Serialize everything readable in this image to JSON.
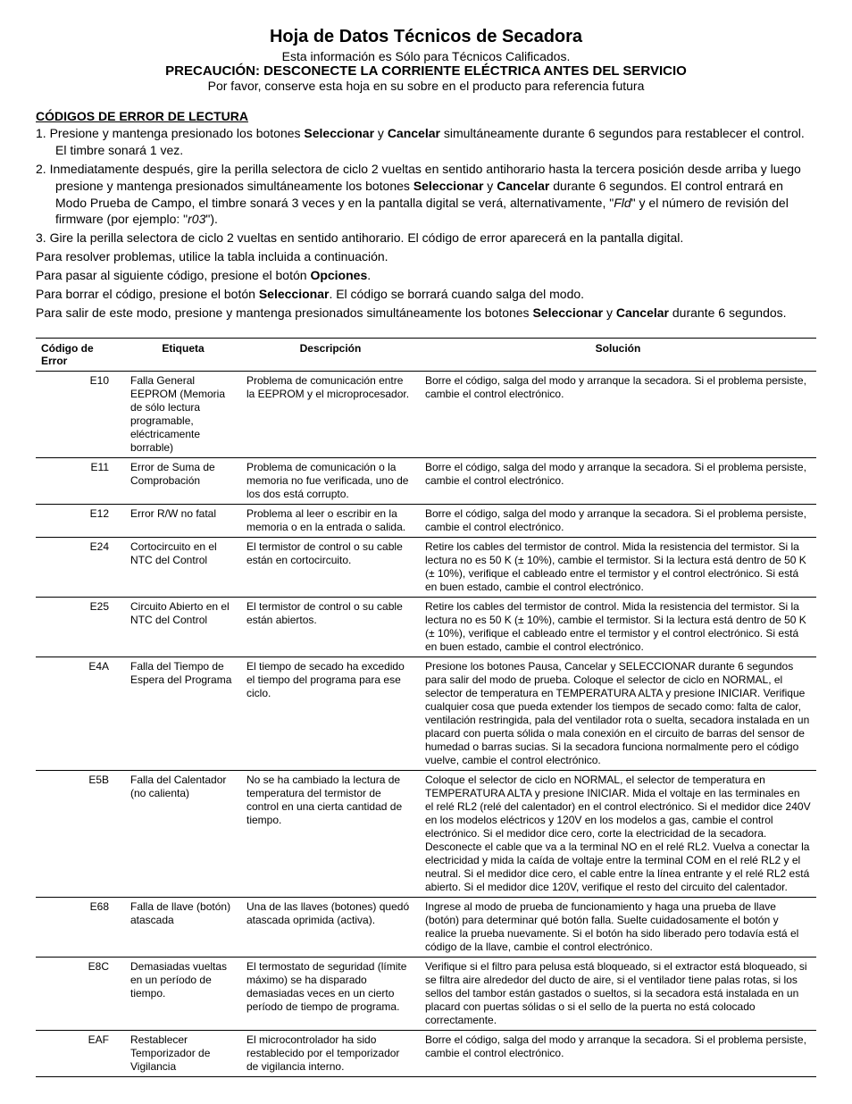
{
  "title": "Hoja de Datos Técnicos de Secadora",
  "subtitle1": "Esta información es Sólo para Técnicos Calificados.",
  "subtitle2": "PRECAUCIÓN: DESCONECTE LA CORRIENTE ELÉCTRICA ANTES DEL SERVICIO",
  "subtitle3": "Por favor, conserve esta hoja en su sobre en el producto para referencia futura",
  "section_header": "CÓDIGOS DE ERROR DE LECTURA",
  "step1_a": "1.  Presione y mantenga presionado los botones ",
  "step1_sel": "Seleccionar",
  "step1_b": " y ",
  "step1_can": "Cancelar",
  "step1_c": " simultáneamente durante 6 segundos para restablecer el control. El timbre sonará 1 vez.",
  "step2_a": "2.  Inmediatamente después, gire la perilla selectora de ciclo 2 vueltas en sentido antihorario hasta la tercera posición desde arriba y luego presione y mantenga presionados simultáneamente los botones ",
  "step2_sel": "Seleccionar",
  "step2_b": " y ",
  "step2_can": "Cancelar",
  "step2_c": " durante 6 segundos. El control entrará en Modo Prueba de Campo, el timbre sonará 3 veces y en la pantalla digital se verá, alternativamente, \"",
  "step2_fld": "Fld",
  "step2_d": "\" y el número de revisión del firmware (por ejemplo: \"",
  "step2_r03": "r03",
  "step2_e": "\").",
  "step3": "3.  Gire la perilla selectora de ciclo 2 vueltas en sentido antihorario. El código de error aparecerá en la pantalla digital.",
  "pres": "Para resolver problemas, utilice la tabla incluida a continuación.",
  "pnext_a": "Para pasar al siguiente código, presione el botón ",
  "pnext_b": "Opciones",
  "pnext_c": ".",
  "pclear_a": "Para borrar el código, presione el botón ",
  "pclear_b": "Seleccionar",
  "pclear_c": ". El código se borrará cuando salga del modo.",
  "pexit_a": "Para salir de este modo, presione y mantenga presionados simultáneamente los botones ",
  "pexit_sel": "Seleccionar",
  "pexit_b": " y ",
  "pexit_can": "Cancelar",
  "pexit_c": " durante 6 segundos.",
  "th1": "Código de Error",
  "th2": "Etiqueta",
  "th3": "Descripción",
  "th4": "Solución",
  "rows": [
    {
      "code": "E10",
      "label": "Falla General EEPROM (Memoria de sólo lectura programable, eléctricamente borrable)",
      "desc": "Problema de comunicación entre la EEPROM y el microprocesador.",
      "sol": "Borre el código, salga del modo y arranque la secadora. Si el problema persiste, cambie el control electrónico."
    },
    {
      "code": "E11",
      "label": "Error de Suma de Comprobación",
      "desc": "Problema de comunicación o la memoria no fue verificada, uno de los dos está corrupto.",
      "sol": "Borre el código, salga del modo y arranque la secadora. Si el problema persiste, cambie el control electrónico."
    },
    {
      "code": "E12",
      "label": "Error R/W no fatal",
      "desc": "Problema al leer o escribir en la memoria o en la entrada o salida.",
      "sol": "Borre el código, salga del modo y arranque la secadora. Si el problema persiste, cambie el control electrónico."
    },
    {
      "code": "E24",
      "label": "Cortocircuito en el NTC del Control",
      "desc": "El termistor de control o su cable están en cortocircuito.",
      "sol": "Retire los cables del termistor de control. Mida la resistencia del termistor. Si la lectura no es 50 K (± 10%), cambie el termistor. Si la lectura está dentro de 50 K (± 10%), verifique el cableado entre el termistor y el control electrónico. Si está en buen estado, cambie el control electrónico."
    },
    {
      "code": "E25",
      "label": "Circuito Abierto en el NTC del Control",
      "desc": "El termistor de control o su cable están abiertos.",
      "sol": "Retire los cables del termistor de control. Mida la resistencia del termistor. Si la lectura no es 50 K (± 10%), cambie el termistor. Si la lectura está dentro de 50 K (± 10%), verifique el cableado entre el termistor y el control electrónico. Si está en buen estado, cambie el control electrónico."
    },
    {
      "code": "E4A",
      "label": "Falla del Tiempo de Espera del Programa",
      "desc": "El tiempo de secado ha excedido el tiempo del programa para ese ciclo.",
      "sol": "Presione los botones Pausa, Cancelar y SELECCIONAR durante 6 segundos para salir del modo de prueba. Coloque el selector de ciclo en NORMAL, el selector de temperatura en TEMPERATURA ALTA y presione INICIAR. Verifique cualquier cosa que pueda extender los tiempos de secado como: falta de calor, ventilación restringida, pala del ventilador rota o suelta, secadora instalada en un placard con puerta sólida o mala conexión en el circuito de barras del sensor de humedad o barras sucias. Si la secadora funciona normalmente pero el código vuelve, cambie el control electrónico."
    },
    {
      "code": "E5B",
      "label": "Falla del Calentador (no calienta)",
      "desc": "No se ha cambiado la lectura de temperatura del termistor de control en una cierta cantidad de tiempo.",
      "sol": "Coloque el selector de ciclo en NORMAL, el selector de temperatura en TEMPERATURA ALTA y presione INICIAR. Mida el voltaje en las terminales en el relé RL2 (relé del calentador) en el control electrónico. Si el medidor dice 240V en los modelos eléctricos y 120V en los modelos a gas, cambie el control electrónico. Si el medidor dice cero, corte la electricidad de la secadora. Desconecte el cable que va a la terminal NO en el relé RL2. Vuelva a conectar la electricidad y mida la caída de voltaje entre la terminal COM en el relé RL2 y el neutral. Si el medidor dice cero, el cable entre la línea entrante y el relé RL2 está abierto. Si el medidor dice 120V, verifique el resto del circuito del calentador."
    },
    {
      "code": "E68",
      "label": "Falla de llave (botón) atascada",
      "desc": "Una de las llaves (botones) quedó atascada oprimida (activa).",
      "sol": "Ingrese al modo de prueba de funcionamiento y haga una prueba de llave (botón) para determinar qué botón falla. Suelte cuidadosamente el botón y realice la prueba nuevamente. Si el botón ha sido liberado pero todavía está el código de la llave, cambie el control electrónico."
    },
    {
      "code": "E8C",
      "label": "Demasiadas vueltas en un período de tiempo.",
      "desc": "El termostato de seguridad (límite máximo) se ha disparado demasiadas veces en un cierto período de tiempo de programa.",
      "sol": "Verifique si el filtro para pelusa está bloqueado, si el extractor está bloqueado, si se filtra aire alrededor del ducto de aire, si el ventilador tiene palas rotas, si los sellos del tambor están gastados o sueltos, si la secadora está instalada en un placard con puertas sólidas o si el sello de la puerta no está colocado correctamente."
    },
    {
      "code": "EAF",
      "label": "Restablecer Temporizador de Vigilancia",
      "desc": "El microcontrolador ha sido restablecido por el temporizador de vigilancia interno.",
      "sol": "Borre el código, salga del modo y arranque la secadora. Si el problema persiste, cambie el control electrónico."
    }
  ]
}
